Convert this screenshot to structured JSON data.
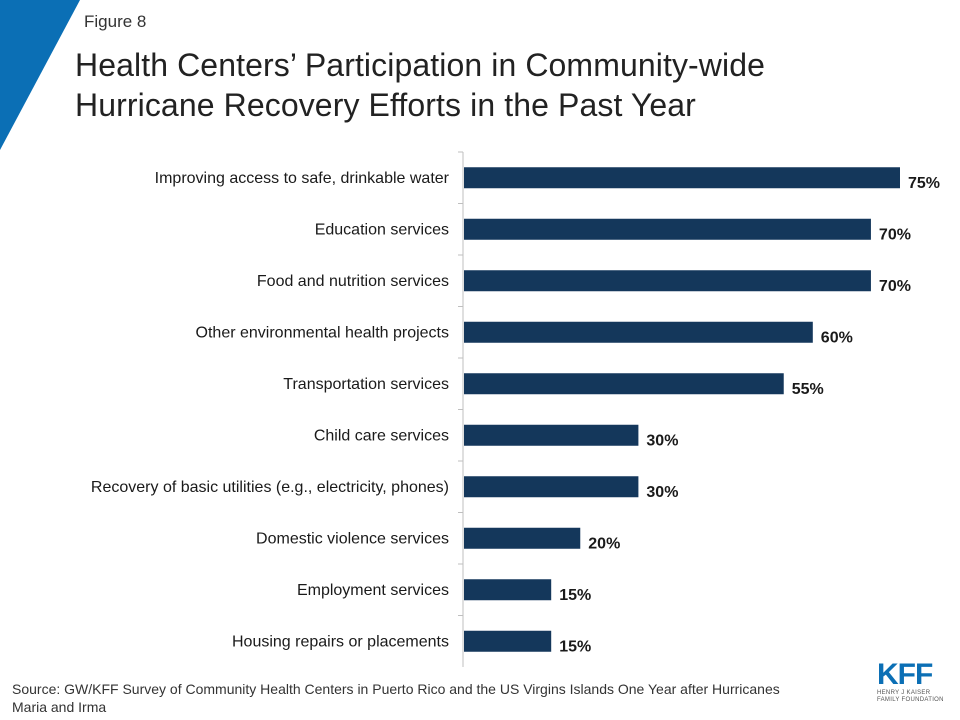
{
  "figure_label": "Figure 8",
  "title_lines": [
    "Health Centers’ Participation in Community-wide",
    "Hurricane Recovery Efforts in the Past Year"
  ],
  "source": "Source: GW/KFF Survey of Community Health Centers in Puerto Rico and the US Virgins Islands One Year after Hurricanes Maria and Irma",
  "logo": {
    "mark": "KFF",
    "sub_line1": "HENRY J KAISER",
    "sub_line2": "FAMILY FOUNDATION"
  },
  "colors": {
    "bar": "#14375b",
    "corner": "#0b6fb5",
    "axis": "#bfbfbf"
  },
  "chart_data": {
    "type": "bar",
    "orientation": "horizontal",
    "categories": [
      "Improving access to safe, drinkable water",
      "Education services",
      "Food and nutrition services",
      "Other environmental health projects",
      "Transportation services",
      "Child care services",
      "Recovery of basic utilities (e.g.,  electricity, phones)",
      "Domestic violence services",
      "Employment services",
      "Housing repairs or placements"
    ],
    "values": [
      75,
      70,
      70,
      60,
      55,
      30,
      30,
      20,
      15,
      15
    ],
    "value_labels": [
      "75%",
      "70%",
      "70%",
      "60%",
      "55%",
      "30%",
      "30%",
      "20%",
      "15%",
      "15%"
    ],
    "xlim": [
      0,
      75
    ],
    "grid": false,
    "legend": "none"
  }
}
